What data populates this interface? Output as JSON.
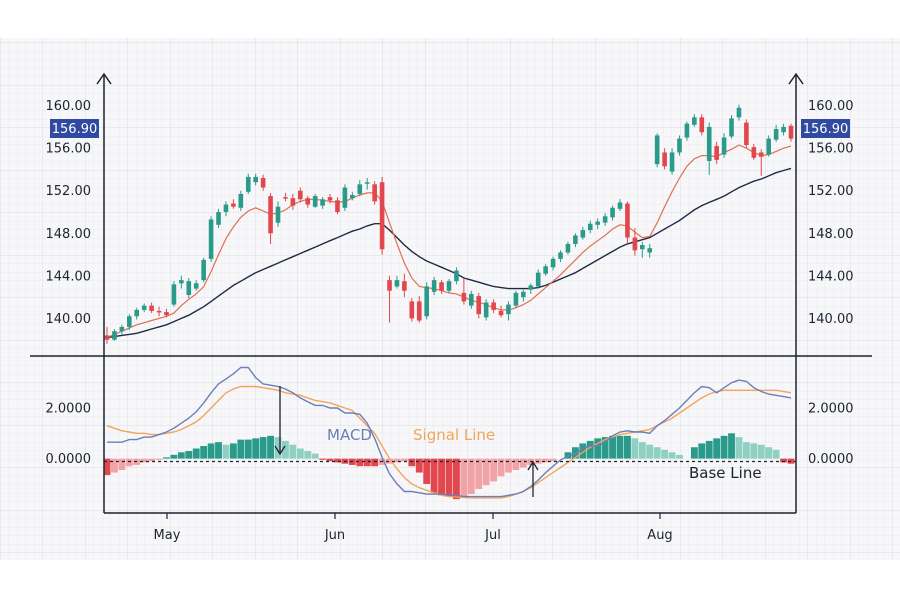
{
  "chart_data": [
    {
      "type": "candlestick",
      "title": "",
      "xlabel": "",
      "ylabel": "",
      "ylim": [
        137.5,
        161
      ],
      "yticks": [
        "140.00",
        "144.00",
        "148.00",
        "152.00",
        "156.00",
        "160.00"
      ],
      "ytick_values": [
        140,
        144,
        148,
        152,
        156,
        160
      ],
      "months": [
        "May",
        "Jun",
        "Jul",
        "Aug"
      ],
      "current_price_label": "156.90",
      "current_price": 156.9,
      "grid": true,
      "colors": {
        "up": "#2a9a8a",
        "down": "#e2474e",
        "fast_ma": "#e07050",
        "slow_ma": "#1f2a44",
        "badge": "#2f4aa0"
      },
      "candles": [
        [
          138.4,
          139.2,
          137.6,
          138.0
        ],
        [
          138.0,
          139.0,
          137.9,
          138.8
        ],
        [
          138.8,
          139.4,
          138.5,
          139.2
        ],
        [
          139.2,
          140.4,
          138.9,
          140.2
        ],
        [
          140.2,
          141.0,
          139.9,
          140.8
        ],
        [
          140.8,
          141.4,
          140.6,
          141.2
        ],
        [
          141.2,
          141.5,
          140.5,
          140.7
        ],
        [
          140.7,
          141.1,
          140.2,
          140.6
        ],
        [
          140.6,
          140.9,
          140.1,
          140.3
        ],
        [
          141.3,
          143.5,
          141.1,
          143.2
        ],
        [
          143.3,
          144.0,
          142.8,
          143.6
        ],
        [
          142.2,
          143.8,
          141.9,
          143.5
        ],
        [
          142.8,
          143.6,
          142.6,
          143.3
        ],
        [
          143.6,
          145.7,
          143.4,
          145.5
        ],
        [
          145.6,
          149.6,
          145.3,
          149.3
        ],
        [
          148.8,
          150.3,
          148.5,
          150.0
        ],
        [
          150.0,
          151.0,
          149.6,
          150.7
        ],
        [
          150.8,
          151.2,
          150.3,
          150.5
        ],
        [
          150.4,
          152.0,
          150.1,
          151.7
        ],
        [
          151.9,
          153.6,
          151.7,
          153.3
        ],
        [
          152.8,
          153.6,
          152.5,
          153.3
        ],
        [
          153.2,
          153.5,
          152.0,
          152.3
        ],
        [
          151.5,
          151.8,
          147.0,
          148.0
        ],
        [
          149.0,
          151.0,
          148.6,
          150.5
        ],
        [
          151.4,
          151.8,
          151.0,
          151.3
        ],
        [
          151.3,
          151.7,
          150.2,
          150.6
        ],
        [
          152.0,
          152.3,
          150.9,
          151.2
        ],
        [
          151.3,
          151.5,
          150.4,
          150.7
        ],
        [
          150.5,
          151.7,
          150.4,
          151.5
        ],
        [
          150.6,
          151.4,
          150.3,
          151.2
        ],
        [
          151.4,
          151.7,
          150.8,
          151.1
        ],
        [
          151.1,
          151.4,
          149.8,
          150.0
        ],
        [
          150.4,
          152.6,
          150.1,
          152.3
        ],
        [
          151.3,
          151.9,
          151.1,
          151.6
        ],
        [
          151.7,
          153.0,
          151.5,
          152.6
        ],
        [
          152.7,
          153.2,
          152.1,
          152.8
        ],
        [
          152.6,
          152.9,
          150.7,
          151.0
        ],
        [
          152.8,
          153.3,
          146.0,
          146.5
        ],
        [
          143.6,
          144.0,
          139.6,
          142.6
        ],
        [
          143.0,
          144.0,
          142.8,
          143.6
        ],
        [
          143.5,
          144.2,
          142.0,
          142.6
        ],
        [
          141.6,
          141.9,
          139.7,
          140.0
        ],
        [
          141.6,
          142.1,
          139.6,
          139.8
        ],
        [
          140.2,
          143.4,
          139.9,
          143.0
        ],
        [
          142.5,
          143.9,
          142.2,
          143.6
        ],
        [
          143.4,
          143.6,
          142.3,
          142.6
        ],
        [
          142.6,
          143.7,
          142.4,
          143.5
        ],
        [
          143.5,
          144.8,
          143.2,
          144.5
        ],
        [
          142.4,
          143.7,
          141.3,
          141.6
        ],
        [
          141.2,
          142.6,
          140.9,
          142.3
        ],
        [
          142.1,
          142.4,
          140.0,
          140.4
        ],
        [
          140.1,
          141.8,
          139.8,
          141.5
        ],
        [
          141.5,
          141.8,
          140.5,
          140.8
        ],
        [
          140.7,
          141.2,
          140.1,
          140.3
        ],
        [
          140.4,
          141.6,
          139.8,
          141.3
        ],
        [
          141.2,
          142.6,
          141.0,
          142.4
        ],
        [
          142.0,
          142.7,
          141.6,
          142.5
        ],
        [
          142.7,
          143.3,
          142.3,
          143.1
        ],
        [
          143.0,
          144.6,
          142.8,
          144.3
        ],
        [
          144.2,
          145.1,
          144.0,
          144.9
        ],
        [
          144.8,
          145.8,
          144.5,
          145.6
        ],
        [
          145.6,
          146.4,
          145.3,
          146.2
        ],
        [
          146.2,
          147.2,
          146.0,
          147.0
        ],
        [
          147.0,
          148.0,
          146.7,
          147.8
        ],
        [
          147.6,
          148.6,
          147.4,
          148.3
        ],
        [
          148.3,
          149.2,
          148.0,
          148.9
        ],
        [
          148.8,
          149.4,
          148.4,
          149.1
        ],
        [
          149.0,
          149.9,
          148.7,
          149.6
        ],
        [
          149.5,
          150.6,
          149.2,
          150.4
        ],
        [
          150.3,
          151.2,
          150.1,
          150.9
        ],
        [
          150.8,
          151.0,
          147.0,
          147.6
        ],
        [
          147.6,
          148.5,
          145.9,
          146.4
        ],
        [
          146.5,
          147.2,
          145.7,
          146.9
        ],
        [
          146.2,
          147.0,
          145.7,
          146.6
        ],
        [
          154.5,
          157.4,
          154.2,
          157.2
        ],
        [
          155.6,
          156.0,
          154.0,
          154.3
        ],
        [
          153.8,
          156.0,
          153.5,
          155.6
        ],
        [
          155.6,
          157.2,
          155.3,
          156.9
        ],
        [
          157.0,
          158.5,
          156.7,
          158.3
        ],
        [
          158.2,
          159.2,
          158.0,
          158.9
        ],
        [
          158.9,
          159.2,
          157.2,
          157.5
        ],
        [
          154.8,
          158.4,
          153.5,
          158.0
        ],
        [
          156.2,
          156.6,
          154.5,
          154.9
        ],
        [
          155.4,
          157.4,
          155.1,
          157.0
        ],
        [
          157.1,
          159.1,
          156.9,
          158.8
        ],
        [
          158.9,
          160.1,
          158.6,
          159.8
        ],
        [
          158.4,
          158.7,
          156.0,
          156.3
        ],
        [
          156.1,
          156.4,
          154.9,
          155.1
        ],
        [
          155.6,
          155.9,
          153.4,
          155.2
        ],
        [
          155.4,
          157.2,
          155.2,
          156.9
        ],
        [
          156.8,
          158.2,
          156.6,
          157.8
        ],
        [
          157.5,
          158.3,
          157.2,
          158.0
        ],
        [
          158.1,
          158.3,
          156.6,
          156.9
        ]
      ],
      "fast_ma": [
        138.2,
        138.5,
        138.8,
        139.1,
        139.4,
        139.6,
        139.8,
        140.0,
        140.2,
        140.5,
        141.2,
        141.8,
        142.3,
        143.0,
        144.4,
        146.0,
        147.5,
        148.6,
        149.5,
        150.1,
        150.4,
        150.1,
        149.8,
        149.9,
        150.2,
        150.7,
        151.0,
        151.2,
        151.2,
        151.1,
        151.0,
        150.9,
        151.0,
        151.3,
        151.6,
        151.8,
        151.8,
        151.0,
        149.0,
        147.0,
        145.2,
        143.8,
        143.0,
        142.9,
        142.8,
        142.6,
        142.4,
        142.3,
        142.0,
        141.7,
        141.5,
        141.3,
        141.0,
        140.8,
        140.8,
        141.0,
        141.3,
        141.7,
        142.3,
        142.9,
        143.5,
        144.1,
        144.8,
        145.5,
        146.2,
        146.8,
        147.3,
        147.8,
        148.4,
        148.8,
        148.7,
        148.1,
        147.6,
        147.7,
        149.0,
        150.5,
        151.9,
        153.2,
        154.3,
        155.0,
        155.3,
        155.3,
        155.2,
        155.6,
        155.9,
        156.3,
        156.0,
        155.6,
        155.3,
        155.4,
        155.7,
        156.0,
        156.2
      ],
      "slow_ma": [
        138.2,
        138.3,
        138.4,
        138.5,
        138.6,
        138.8,
        139.0,
        139.2,
        139.4,
        139.7,
        140.0,
        140.3,
        140.7,
        141.1,
        141.6,
        142.1,
        142.6,
        143.1,
        143.5,
        143.9,
        144.3,
        144.6,
        144.9,
        145.2,
        145.5,
        145.8,
        146.1,
        146.4,
        146.7,
        147.0,
        147.3,
        147.6,
        147.9,
        148.2,
        148.4,
        148.7,
        148.9,
        148.9,
        148.3,
        147.6,
        146.9,
        146.3,
        145.8,
        145.4,
        145.1,
        144.8,
        144.5,
        144.2,
        143.8,
        143.6,
        143.4,
        143.2,
        143.0,
        142.9,
        142.8,
        142.8,
        142.8,
        142.8,
        142.9,
        143.1,
        143.4,
        143.7,
        144.0,
        144.3,
        144.7,
        145.1,
        145.5,
        145.9,
        146.3,
        146.7,
        147.0,
        147.2,
        147.4,
        147.6,
        148.0,
        148.4,
        148.8,
        149.2,
        149.7,
        150.2,
        150.6,
        150.9,
        151.2,
        151.5,
        151.9,
        152.3,
        152.6,
        152.9,
        153.1,
        153.4,
        153.7,
        153.9,
        154.1
      ]
    },
    {
      "type": "macd",
      "yticks": [
        "0.0000",
        "2.0000"
      ],
      "ytick_values": [
        0,
        2
      ],
      "ylim": [
        -1.95,
        3.5
      ],
      "annotations": {
        "macd": "MACD",
        "signal": "Signal Line",
        "base": "Base Line"
      },
      "colors": {
        "macd_line": "#6a7fb8",
        "signal_line": "#f2a55a",
        "hist_up": "#2a9a8a",
        "hist_up_light": "#8fd0c3",
        "hist_down": "#e2474e",
        "hist_down_light": "#f2a3a8"
      },
      "macd": [
        0.65,
        0.65,
        0.65,
        0.75,
        0.75,
        0.85,
        0.85,
        0.95,
        1.05,
        1.2,
        1.4,
        1.6,
        1.85,
        2.2,
        2.6,
        2.95,
        3.15,
        3.35,
        3.6,
        3.6,
        3.2,
        2.95,
        2.9,
        2.85,
        2.75,
        2.6,
        2.4,
        2.25,
        2.1,
        2.1,
        2.0,
        2.0,
        1.8,
        1.8,
        1.75,
        1.4,
        0.8,
        0.05,
        -0.6,
        -1.0,
        -1.3,
        -1.3,
        -1.35,
        -1.4,
        -1.4,
        -1.4,
        -1.45,
        -1.45,
        -1.5,
        -1.5,
        -1.5,
        -1.5,
        -1.5,
        -1.5,
        -1.45,
        -1.4,
        -1.3,
        -1.1,
        -0.85,
        -0.55,
        -0.3,
        -0.05,
        0.1,
        0.2,
        0.4,
        0.5,
        0.5,
        0.65,
        0.9,
        1.05,
        1.1,
        1.05,
        1.05,
        1.0,
        1.3,
        1.5,
        1.75,
        2.0,
        2.3,
        2.6,
        2.85,
        2.8,
        2.6,
        2.8,
        3.0,
        3.1,
        3.05,
        2.8,
        2.65,
        2.55,
        2.5,
        2.45,
        2.4
      ],
      "signal": [
        1.3,
        1.2,
        1.1,
        1.05,
        1.0,
        1.0,
        0.95,
        0.95,
        1.0,
        1.05,
        1.15,
        1.3,
        1.45,
        1.7,
        2.0,
        2.3,
        2.6,
        2.75,
        2.85,
        2.85,
        2.85,
        2.8,
        2.75,
        2.7,
        2.6,
        2.55,
        2.5,
        2.4,
        2.3,
        2.25,
        2.2,
        2.1,
        2.0,
        1.9,
        1.6,
        1.3,
        1.0,
        0.5,
        0.0,
        -0.4,
        -0.75,
        -1.0,
        -1.15,
        -1.25,
        -1.35,
        -1.45,
        -1.5,
        -1.52,
        -1.54,
        -1.55,
        -1.55,
        -1.55,
        -1.55,
        -1.55,
        -1.5,
        -1.4,
        -1.3,
        -1.15,
        -0.95,
        -0.75,
        -0.55,
        -0.35,
        -0.15,
        0.05,
        0.25,
        0.45,
        0.6,
        0.75,
        0.85,
        0.95,
        1.0,
        1.05,
        1.1,
        1.15,
        1.3,
        1.45,
        1.6,
        1.8,
        2.0,
        2.2,
        2.4,
        2.55,
        2.65,
        2.7,
        2.7,
        2.7,
        2.7,
        2.7,
        2.7,
        2.7,
        2.7,
        2.65,
        2.6
      ],
      "histogram": [
        -0.65,
        -0.55,
        -0.45,
        -0.3,
        -0.25,
        -0.15,
        -0.1,
        -0.05,
        0.05,
        0.15,
        0.25,
        0.3,
        0.4,
        0.5,
        0.6,
        0.65,
        0.55,
        0.6,
        0.75,
        0.75,
        0.8,
        0.85,
        0.9,
        0.85,
        0.7,
        0.55,
        0.4,
        0.3,
        0.2,
        -0.05,
        -0.1,
        -0.15,
        -0.2,
        -0.25,
        -0.3,
        -0.3,
        -0.3,
        -0.25,
        -0.2,
        -0.15,
        -0.1,
        -0.3,
        -0.55,
        -1.0,
        -1.35,
        -1.45,
        -1.5,
        -1.6,
        -1.5,
        -1.4,
        -1.2,
        -1.05,
        -0.9,
        -0.7,
        -0.55,
        -0.45,
        -0.35,
        -0.25,
        -0.2,
        -0.15,
        -0.1,
        0.0,
        0.25,
        0.45,
        0.6,
        0.7,
        0.8,
        0.85,
        0.9,
        0.9,
        0.9,
        0.8,
        0.65,
        0.55,
        0.45,
        0.35,
        0.25,
        0.15,
        0.0,
        0.45,
        0.6,
        0.7,
        0.8,
        0.9,
        1.0,
        0.85,
        0.65,
        0.6,
        0.55,
        0.45,
        0.35,
        -0.15,
        -0.2
      ]
    }
  ]
}
